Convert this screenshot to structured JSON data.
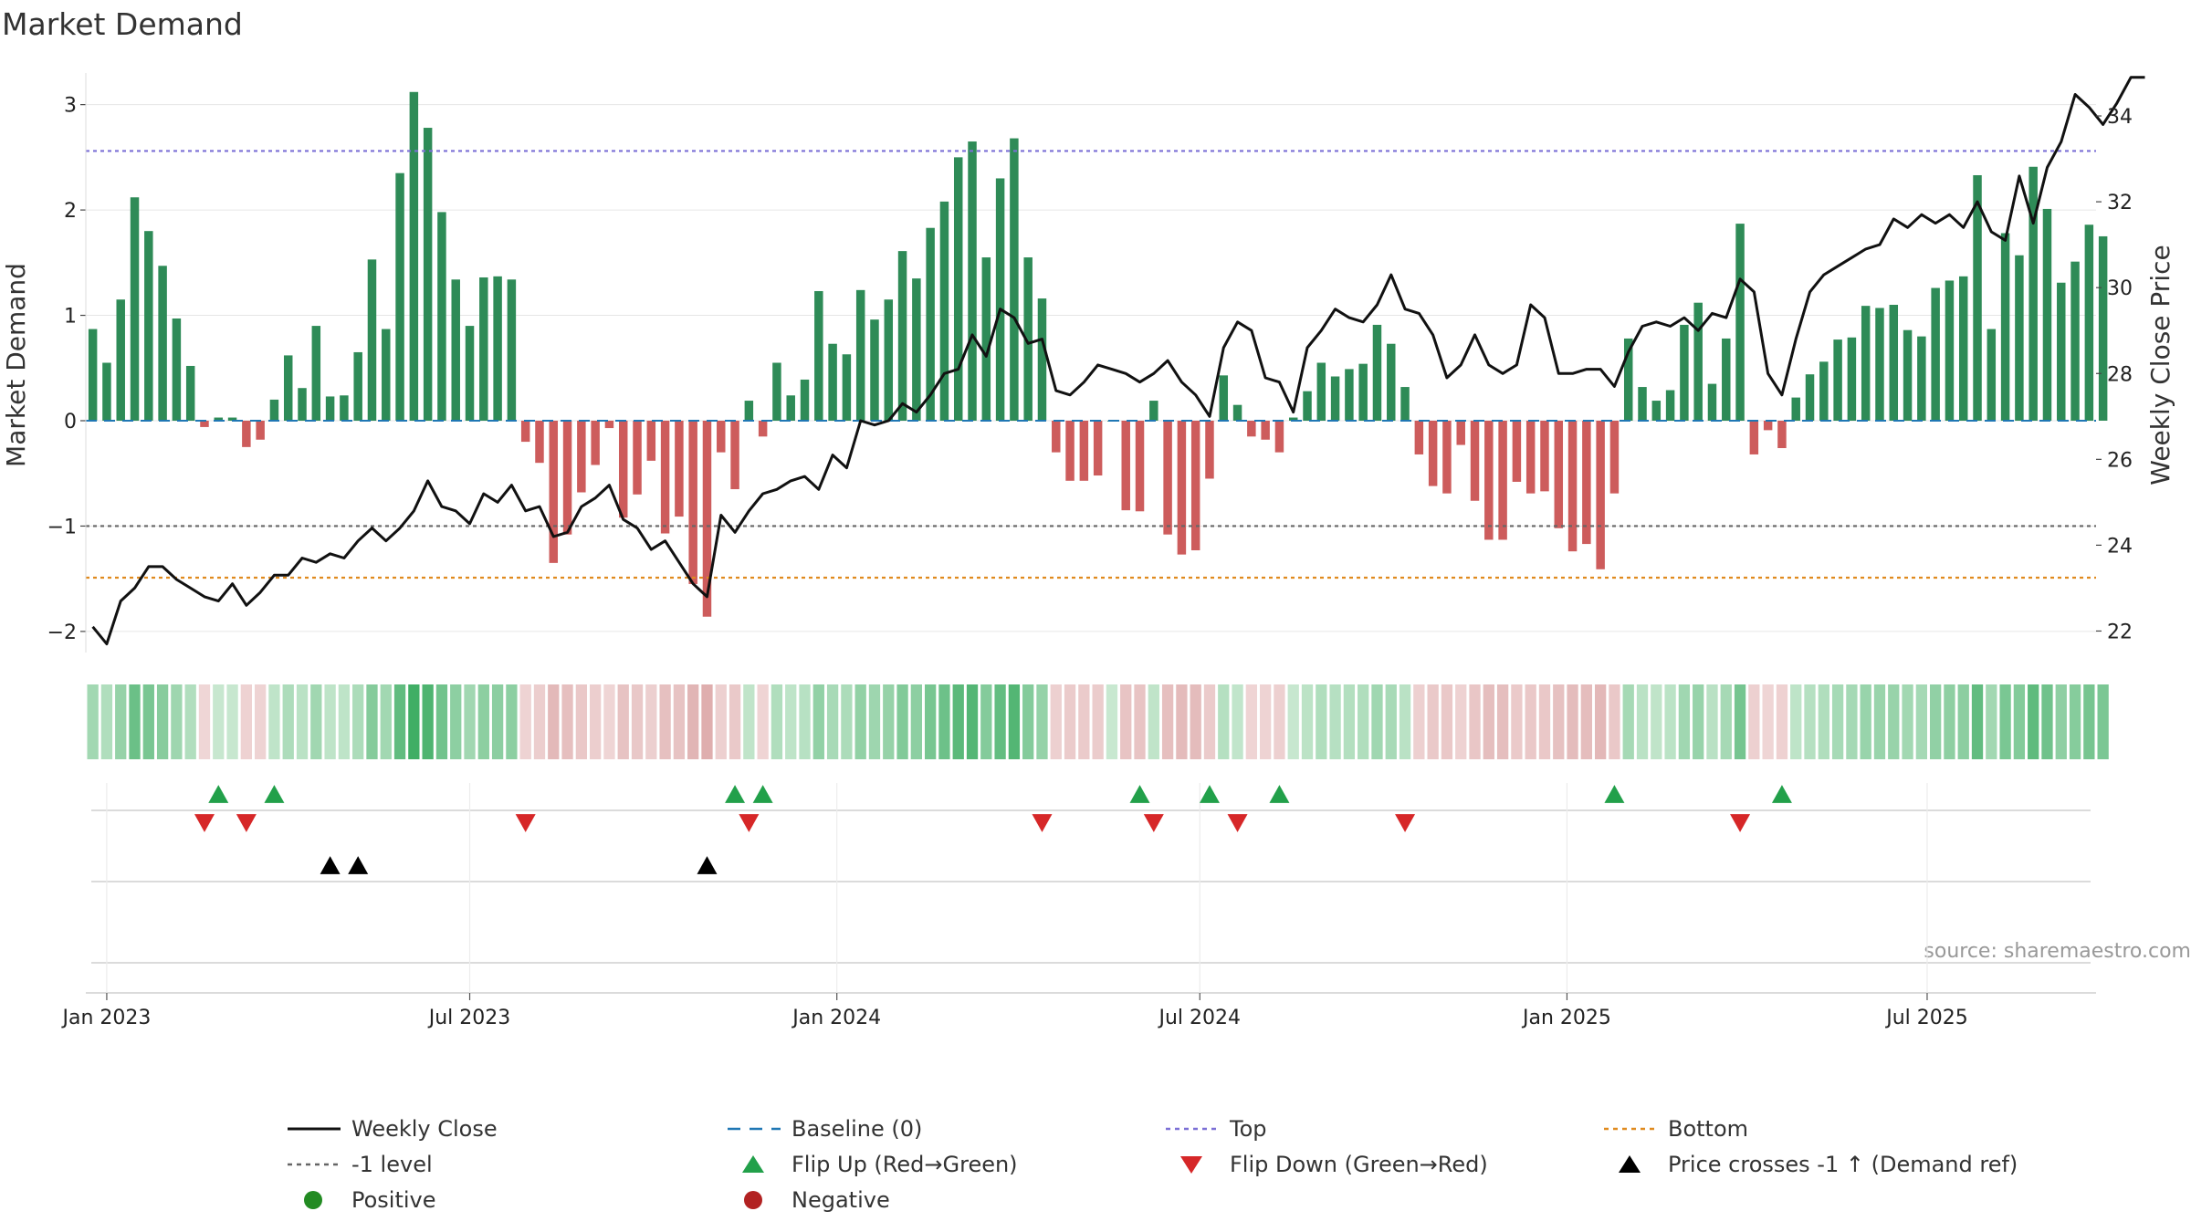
{
  "chart_data": {
    "type": "bar+line",
    "title": "Market Demand",
    "ylabel_left": "Market Demand",
    "ylabel_right": "Weekly Close Price",
    "ylim_left": [
      -2.2,
      3.3
    ],
    "ylim_right": [
      21.5,
      35.0
    ],
    "left_ticks": [
      3,
      2,
      1,
      0,
      -1,
      -2
    ],
    "left_tick_labels": [
      "3",
      "2",
      "1",
      "0",
      "−1",
      "−2"
    ],
    "right_ticks": [
      34,
      32,
      30,
      28,
      26,
      24,
      22
    ],
    "right_tick_labels": [
      "34",
      "32",
      "30",
      "28",
      "26",
      "24",
      "22"
    ],
    "x_start": "2022-12-26",
    "x_range_weeks": [
      -0.5,
      143.5
    ],
    "x_ticks": [
      {
        "week": 1,
        "label": "Jan 2023"
      },
      {
        "week": 27,
        "label": "Jul 2023"
      },
      {
        "week": 53.3,
        "label": "Jan 2024"
      },
      {
        "week": 79.3,
        "label": "Jul 2024"
      },
      {
        "week": 105.6,
        "label": "Jan 2025"
      },
      {
        "week": 131.4,
        "label": "Jul 2025"
      }
    ],
    "demand": [
      0.87,
      0.55,
      1.15,
      2.12,
      1.8,
      1.47,
      0.97,
      0.52,
      -0.06,
      0.03,
      0.03,
      -0.25,
      -0.18,
      0.2,
      0.62,
      0.31,
      0.9,
      0.23,
      0.24,
      0.65,
      1.53,
      0.87,
      2.35,
      3.12,
      2.78,
      1.98,
      1.34,
      0.9,
      1.36,
      1.37,
      1.34,
      -0.2,
      -0.4,
      -1.35,
      -1.08,
      -0.68,
      -0.42,
      -0.07,
      -0.92,
      -0.7,
      -0.38,
      -1.07,
      -0.91,
      -1.55,
      -1.86,
      -0.3,
      -0.65,
      0.19,
      -0.15,
      0.55,
      0.24,
      0.39,
      1.23,
      0.73,
      0.63,
      1.24,
      0.96,
      1.15,
      1.61,
      1.35,
      1.83,
      2.08,
      2.5,
      2.65,
      1.55,
      2.3,
      2.68,
      1.55,
      1.16,
      -0.3,
      -0.57,
      -0.57,
      -0.52,
      0.0,
      -0.85,
      -0.86,
      0.19,
      -1.08,
      -1.27,
      -1.23,
      -0.55,
      0.43,
      0.15,
      -0.15,
      -0.18,
      -0.3,
      0.03,
      0.28,
      0.55,
      0.42,
      0.49,
      0.54,
      0.91,
      0.73,
      0.32,
      -0.32,
      -0.62,
      -0.69,
      -0.23,
      -0.76,
      -1.13,
      -1.13,
      -0.58,
      -0.69,
      -0.67,
      -1.02,
      -1.24,
      -1.17,
      -1.41,
      -0.69,
      0.78,
      0.32,
      0.19,
      0.29,
      0.91,
      1.12,
      0.35,
      0.78,
      1.87,
      -0.32,
      -0.09,
      -0.26,
      0.22,
      0.44,
      0.56,
      0.77,
      0.79,
      1.09,
      1.07,
      1.1,
      0.86,
      0.8,
      1.26,
      1.33,
      1.37,
      2.33,
      0.87,
      1.78,
      1.57,
      2.41,
      2.01,
      1.31,
      1.51,
      1.86,
      1.75
    ],
    "close": [
      22.1,
      21.7,
      22.7,
      23.0,
      23.5,
      23.5,
      23.2,
      23.0,
      22.8,
      22.7,
      23.1,
      22.6,
      22.9,
      23.3,
      23.3,
      23.7,
      23.6,
      23.8,
      23.7,
      24.1,
      24.4,
      24.1,
      24.4,
      24.8,
      25.5,
      24.9,
      24.8,
      24.5,
      25.2,
      25.0,
      25.4,
      24.8,
      24.9,
      24.2,
      24.3,
      24.9,
      25.1,
      25.4,
      24.6,
      24.4,
      23.9,
      24.1,
      23.6,
      23.1,
      22.8,
      24.7,
      24.3,
      24.8,
      25.2,
      25.3,
      25.5,
      25.6,
      25.3,
      26.1,
      25.8,
      26.9,
      26.8,
      26.9,
      27.3,
      27.1,
      27.5,
      28.0,
      28.1,
      28.9,
      28.4,
      29.5,
      29.3,
      28.7,
      28.8,
      27.6,
      27.5,
      27.8,
      28.2,
      28.1,
      28.0,
      27.8,
      28.0,
      28.3,
      27.8,
      27.5,
      27.0,
      28.6,
      29.2,
      29.0,
      27.9,
      27.8,
      27.1,
      28.6,
      29.0,
      29.5,
      29.3,
      29.2,
      29.6,
      30.3,
      29.5,
      29.4,
      28.9,
      27.9,
      28.2,
      28.9,
      28.2,
      28.0,
      28.2,
      29.6,
      29.3,
      28.0,
      28.0,
      28.1,
      28.1,
      27.7,
      28.5,
      29.1,
      29.2,
      29.1,
      29.3,
      29.0,
      29.4,
      29.3,
      30.2,
      29.9,
      28.0,
      27.5,
      28.8,
      29.9,
      30.3,
      30.5,
      30.7,
      30.9,
      31.0,
      31.6,
      31.4,
      31.7,
      31.5,
      31.7,
      31.4,
      32.0,
      31.3,
      31.1,
      32.6,
      31.5,
      32.8,
      33.4,
      34.5,
      34.2,
      33.8,
      34.3,
      34.9,
      34.9
    ],
    "levels": {
      "baseline": 0,
      "top": 2.56,
      "minus_one": -1,
      "bottom": -1.49
    },
    "flip_up_weeks": [
      9,
      13,
      46,
      48,
      75,
      80,
      85,
      109,
      121
    ],
    "flip_down_weeks": [
      8,
      11,
      31,
      47,
      68,
      76,
      82,
      94,
      118
    ],
    "price_cross_weeks": [
      17,
      19,
      44
    ],
    "legend": [
      {
        "key": "weekly_close",
        "label": "Weekly Close"
      },
      {
        "key": "baseline",
        "label": "Baseline (0)"
      },
      {
        "key": "top",
        "label": "Top"
      },
      {
        "key": "bottom",
        "label": "Bottom"
      },
      {
        "key": "minus_one",
        "label": "-1 level"
      },
      {
        "key": "flip_up",
        "label": "Flip Up (Red→Green)"
      },
      {
        "key": "flip_down",
        "label": "Flip Down (Green→Red)"
      },
      {
        "key": "price_cross",
        "label": "Price crosses -1 ↑ (Demand ref)"
      },
      {
        "key": "positive",
        "label": "Positive"
      },
      {
        "key": "negative",
        "label": "Negative"
      }
    ],
    "source": "source: sharemaestro.com"
  },
  "colors": {
    "positive": "#2e8b57",
    "negative": "#cd5c5c",
    "line": "#111111",
    "baseline": "#1f77b4",
    "top": "#7b6fd6",
    "minus_one": "#666666",
    "bottom": "#e08a1e",
    "flip_up": "#22a04a",
    "flip_down": "#d62728",
    "price_cross": "#000000",
    "positive_dot": "#228b22",
    "negative_dot": "#b22222"
  }
}
